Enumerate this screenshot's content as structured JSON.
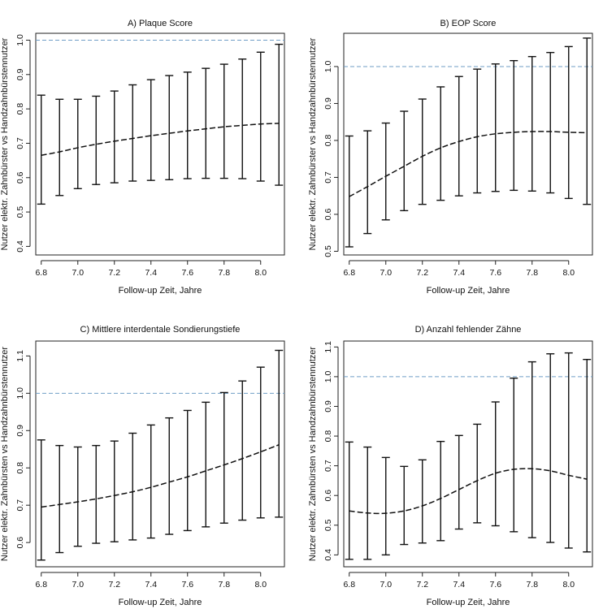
{
  "chart_data": [
    {
      "type": "errorbar-line",
      "title": "A) Plaque Score",
      "xlabel": "Follow-up Zeit, Jahre",
      "ylabel": "Nutzer elektr. Zahnbürster vs Handzahnbürstennutzer",
      "xlim": [
        6.77,
        8.13
      ],
      "ylim": [
        0.375,
        1.02
      ],
      "xticks": [
        6.8,
        7.0,
        7.2,
        7.4,
        7.6,
        7.8,
        8.0
      ],
      "xtick_labels": [
        "6.8",
        "7.0",
        "7.2",
        "7.4",
        "7.6",
        "7.8",
        "8.0"
      ],
      "yticks": [
        0.4,
        0.5,
        0.6,
        0.7,
        0.8,
        0.9,
        1.0
      ],
      "ytick_labels": [
        "0.4",
        "0.5",
        "0.6",
        "0.7",
        "0.8",
        "0.9",
        "1.0"
      ],
      "reference_line": 1.0,
      "x": [
        6.8,
        6.9,
        7.0,
        7.1,
        7.2,
        7.3,
        7.4,
        7.5,
        7.6,
        7.7,
        7.8,
        7.9,
        8.0,
        8.1
      ],
      "estimate": [
        0.665,
        0.675,
        0.687,
        0.697,
        0.706,
        0.714,
        0.722,
        0.729,
        0.736,
        0.742,
        0.748,
        0.752,
        0.756,
        0.758
      ],
      "lower": [
        0.523,
        0.548,
        0.568,
        0.58,
        0.585,
        0.59,
        0.592,
        0.594,
        0.597,
        0.598,
        0.598,
        0.597,
        0.59,
        0.578
      ],
      "upper": [
        0.84,
        0.828,
        0.828,
        0.837,
        0.852,
        0.87,
        0.885,
        0.897,
        0.907,
        0.918,
        0.93,
        0.945,
        0.965,
        0.988
      ]
    },
    {
      "type": "errorbar-line",
      "title": "B) EOP Score",
      "xlabel": "Follow-up Zeit, Jahre",
      "ylabel": "Nutzer elektr. Zahnbürster vs Handzahnbürstennutzer",
      "xlim": [
        6.77,
        8.13
      ],
      "ylim": [
        0.49,
        1.09
      ],
      "xticks": [
        6.8,
        7.0,
        7.2,
        7.4,
        7.6,
        7.8,
        8.0
      ],
      "xtick_labels": [
        "6.8",
        "7.0",
        "7.2",
        "7.4",
        "7.6",
        "7.8",
        "8.0"
      ],
      "yticks": [
        0.5,
        0.6,
        0.7,
        0.8,
        0.9,
        1.0
      ],
      "ytick_labels": [
        "0.5",
        "0.6",
        "0.7",
        "0.8",
        "0.9",
        "1.0"
      ],
      "reference_line": 1.0,
      "x": [
        6.8,
        6.9,
        7.0,
        7.1,
        7.2,
        7.3,
        7.4,
        7.5,
        7.6,
        7.7,
        7.8,
        7.9,
        8.0,
        8.1
      ],
      "estimate": [
        0.648,
        0.675,
        0.703,
        0.73,
        0.757,
        0.78,
        0.797,
        0.81,
        0.818,
        0.822,
        0.824,
        0.824,
        0.822,
        0.821
      ],
      "lower": [
        0.512,
        0.548,
        0.585,
        0.61,
        0.627,
        0.638,
        0.65,
        0.658,
        0.662,
        0.665,
        0.663,
        0.658,
        0.643,
        0.627
      ],
      "upper": [
        0.812,
        0.826,
        0.847,
        0.879,
        0.912,
        0.945,
        0.973,
        0.993,
        1.007,
        1.016,
        1.027,
        1.038,
        1.054,
        1.077
      ]
    },
    {
      "type": "errorbar-line",
      "title": "C) Mittlere interdentale Sondierungstiefe",
      "xlabel": "Follow-up Zeit, Jahre",
      "ylabel": "Nutzer elektr. Zahnbürsten vs Handzahnbürstennutzer",
      "xlim": [
        6.77,
        8.13
      ],
      "ylim": [
        0.535,
        1.14
      ],
      "xticks": [
        6.8,
        7.0,
        7.2,
        7.4,
        7.6,
        7.8,
        8.0
      ],
      "xtick_labels": [
        "6.8",
        "7.0",
        "7.2",
        "7.4",
        "7.6",
        "7.8",
        "8.0"
      ],
      "yticks": [
        0.6,
        0.7,
        0.8,
        0.9,
        1.0,
        1.1
      ],
      "ytick_labels": [
        "0.6",
        "0.7",
        "0.8",
        "0.9",
        "1.0",
        "1.1"
      ],
      "reference_line": 1.0,
      "x": [
        6.8,
        6.9,
        7.0,
        7.1,
        7.2,
        7.3,
        7.4,
        7.5,
        7.6,
        7.7,
        7.8,
        7.9,
        8.0,
        8.1
      ],
      "estimate": [
        0.695,
        0.702,
        0.709,
        0.717,
        0.726,
        0.736,
        0.748,
        0.762,
        0.776,
        0.792,
        0.808,
        0.825,
        0.843,
        0.862
      ],
      "lower": [
        0.553,
        0.573,
        0.59,
        0.598,
        0.602,
        0.607,
        0.612,
        0.622,
        0.632,
        0.642,
        0.652,
        0.66,
        0.666,
        0.668
      ],
      "upper": [
        0.875,
        0.86,
        0.856,
        0.86,
        0.872,
        0.893,
        0.915,
        0.934,
        0.954,
        0.976,
        1.002,
        1.033,
        1.07,
        1.115
      ]
    },
    {
      "type": "errorbar-line",
      "title": "D) Anzahl fehlender Zähne",
      "xlabel": "Follow-up Zeit, Jahre",
      "ylabel": "Nutzer elektr. Zahnbürsten vs Handzahnbürstennutzer",
      "xlim": [
        6.77,
        8.13
      ],
      "ylim": [
        0.36,
        1.12
      ],
      "xticks": [
        6.8,
        7.0,
        7.2,
        7.4,
        7.6,
        7.8,
        8.0
      ],
      "xtick_labels": [
        "6.8",
        "7.0",
        "7.2",
        "7.4",
        "7.6",
        "7.8",
        "8.0"
      ],
      "yticks": [
        0.4,
        0.5,
        0.6,
        0.7,
        0.8,
        0.9,
        1.0,
        1.1
      ],
      "ytick_labels": [
        "0.4",
        "0.5",
        "0.6",
        "0.7",
        "0.8",
        "0.9",
        "1.0",
        "1.1"
      ],
      "reference_line": 1.0,
      "x": [
        6.8,
        6.9,
        7.0,
        7.1,
        7.2,
        7.3,
        7.4,
        7.5,
        7.6,
        7.7,
        7.8,
        7.9,
        8.0,
        8.1
      ],
      "estimate": [
        0.548,
        0.541,
        0.54,
        0.548,
        0.565,
        0.59,
        0.62,
        0.65,
        0.675,
        0.688,
        0.69,
        0.683,
        0.668,
        0.655
      ],
      "lower": [
        0.385,
        0.385,
        0.4,
        0.435,
        0.44,
        0.448,
        0.487,
        0.508,
        0.498,
        0.478,
        0.458,
        0.442,
        0.423,
        0.41
      ],
      "upper": [
        0.78,
        0.763,
        0.728,
        0.698,
        0.72,
        0.782,
        0.802,
        0.84,
        0.915,
        0.995,
        1.05,
        1.077,
        1.08,
        1.058
      ]
    }
  ],
  "colors": {
    "reference_line": "#6f9ec6",
    "marks": "#111111"
  }
}
